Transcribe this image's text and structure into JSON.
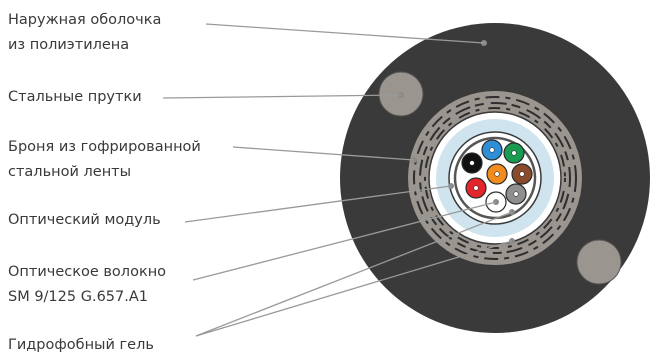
{
  "labels": {
    "outer_sheath": [
      "Наружная оболочка",
      "из полиэтилена"
    ],
    "steel_rods": "Стальные прутки",
    "armor": [
      "Броня из гофрированной",
      "стальной ленты"
    ],
    "optical_module": "Оптический модуль",
    "optical_fiber": [
      "Оптическое волокно",
      "SM 9/125 G.657.A1"
    ],
    "hydrophobic_gel": "Гидрофобный гель"
  },
  "colors": {
    "outer_sheath": "#3a3a3a",
    "steel_rod": "#9b9590",
    "armor": "#9b9590",
    "inner_jacket": "#ffffff",
    "gel_layer": "#cfe4ee",
    "tube": "#ffffff",
    "leader_line": "#9a9a9a"
  },
  "fibers": [
    {
      "name": "black",
      "color": "#111111"
    },
    {
      "name": "blue",
      "color": "#2f8fd6"
    },
    {
      "name": "green",
      "color": "#1b9a52"
    },
    {
      "name": "brown",
      "color": "#8a4b2c"
    },
    {
      "name": "gray",
      "color": "#8f8f8f"
    },
    {
      "name": "white",
      "color": "#ffffff"
    },
    {
      "name": "red",
      "color": "#e2262c"
    },
    {
      "name": "orange",
      "color": "#f28c1e"
    }
  ]
}
